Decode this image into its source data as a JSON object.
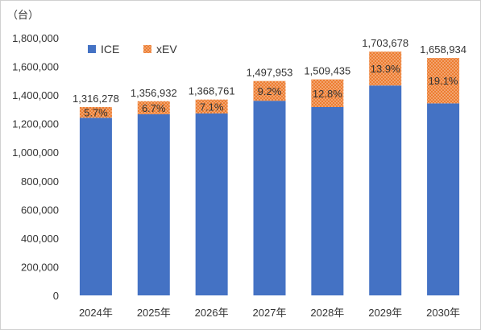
{
  "chart_data": {
    "type": "bar",
    "stacked": true,
    "unit_label": "（台）",
    "categories": [
      "2024年",
      "2025年",
      "2026年",
      "2027年",
      "2028年",
      "2029年",
      "2030年"
    ],
    "series": [
      {
        "name": "ICE",
        "color": "#4472C4",
        "pattern": "solid",
        "values": [
          1241250,
          1266022,
          1271579,
          1360140,
          1316227,
          1466866,
          1342078
        ]
      },
      {
        "name": "xEV",
        "color": "#ED7D31",
        "pattern": "dotted",
        "values": [
          75028,
          90910,
          97182,
          137813,
          193208,
          236812,
          316856
        ]
      }
    ],
    "totals": [
      1316278,
      1356932,
      1368761,
      1497953,
      1509435,
      1703678,
      1658934
    ],
    "total_labels": [
      "1,316,278",
      "1,356,932",
      "1,368,761",
      "1,497,953",
      "1,509,435",
      "1,703,678",
      "1,658,934"
    ],
    "xev_share_labels": [
      "5.7%",
      "6.7%",
      "7.1%",
      "9.2%",
      "12.8%",
      "13.9%",
      "19.1%"
    ],
    "ylim": [
      0,
      1800000
    ],
    "y_ticks": [
      0,
      200000,
      400000,
      600000,
      800000,
      1000000,
      1200000,
      1400000,
      1600000,
      1800000
    ],
    "y_tick_labels": [
      "0",
      "200,000",
      "400,000",
      "600,000",
      "800,000",
      "1,000,000",
      "1,200,000",
      "1,400,000",
      "1,600,000",
      "1,800,000"
    ],
    "legend_position": "top-left",
    "grid": false
  }
}
